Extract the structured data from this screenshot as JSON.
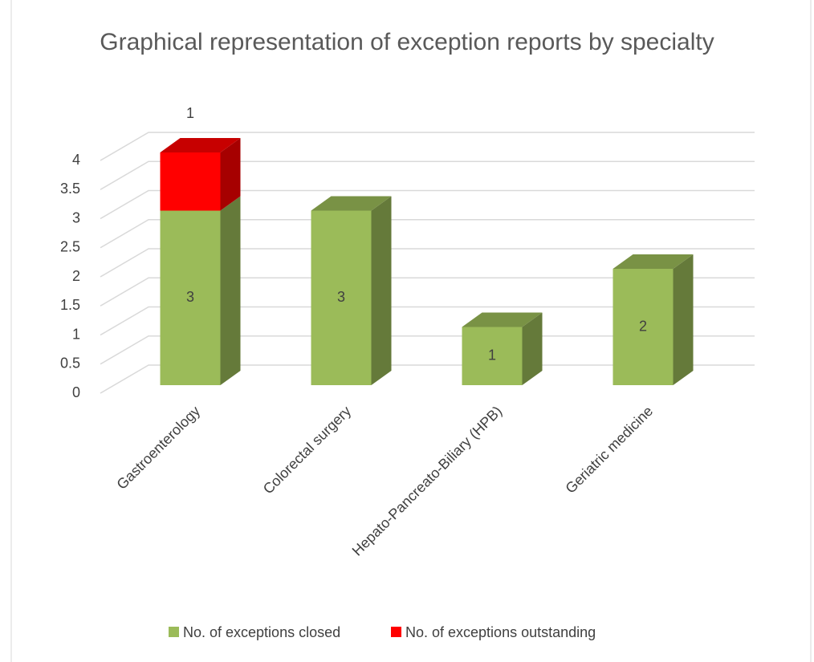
{
  "chart_data": {
    "type": "bar3d_stacked",
    "title": "Graphical representation of exception reports by specialty",
    "categories": [
      "Gastroenterology",
      "Colorectal surgery",
      "Hepato-Pancreato-Biliary (HPB)",
      "Geriatric medicine"
    ],
    "series": [
      {
        "name": "No. of exceptions closed",
        "color": "#9bbb59",
        "values": [
          3,
          3,
          1,
          2
        ]
      },
      {
        "name": "No. of exceptions outstanding",
        "color": "#ff0000",
        "values": [
          1,
          null,
          null,
          null
        ]
      }
    ],
    "ylim": [
      0,
      4
    ],
    "yticks": [
      0,
      0.5,
      1,
      1.5,
      2,
      2.5,
      3,
      3.5,
      4
    ],
    "grid": true,
    "legend": "bottom"
  }
}
